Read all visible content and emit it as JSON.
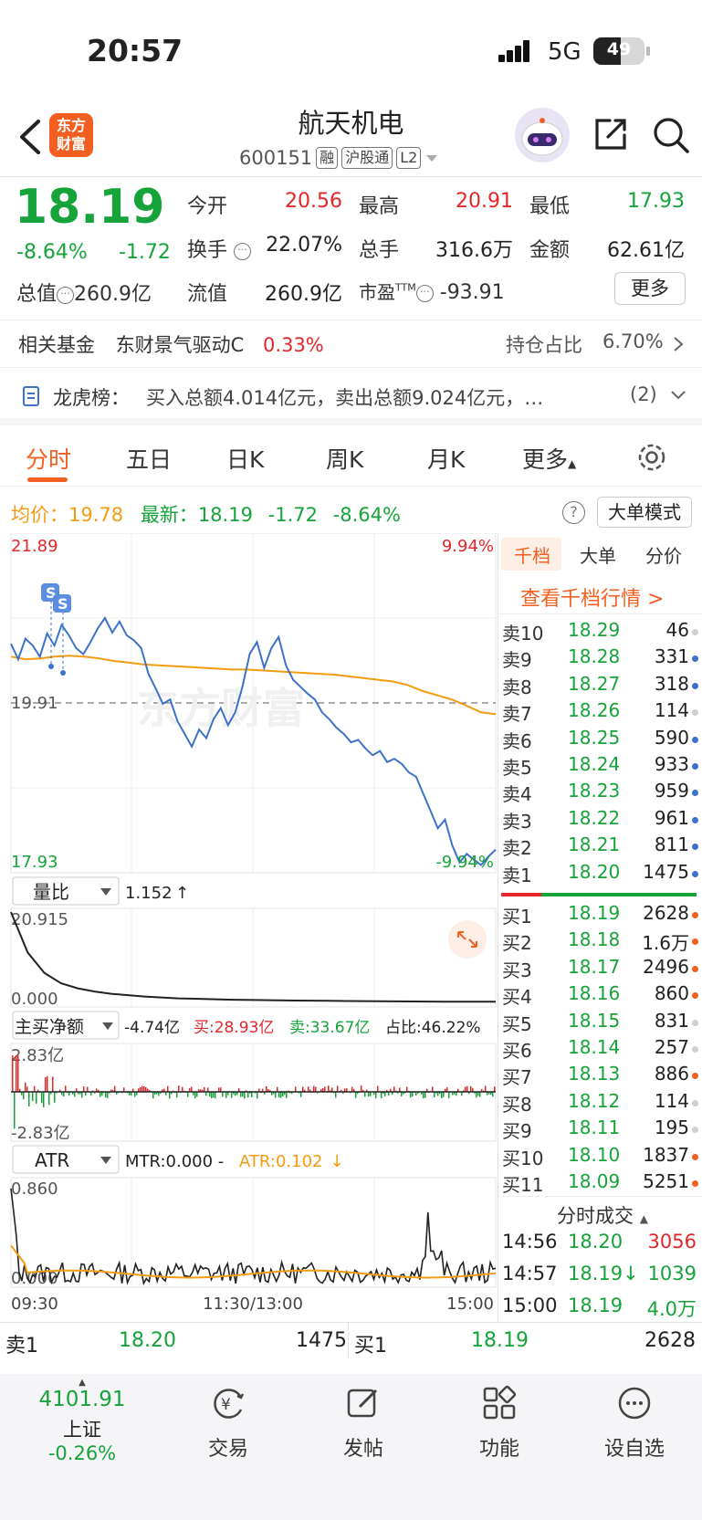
{
  "status_bar": {
    "time": "20:57",
    "network": "5G",
    "battery": "49"
  },
  "header": {
    "logo_text_top": "东方",
    "logo_text_bottom": "财富",
    "stock_name": "航天机电",
    "stock_code": "600151",
    "tags": [
      "融",
      "沪股通",
      "L2"
    ]
  },
  "quote": {
    "price": "18.19",
    "change_pct": "-8.64%",
    "change_val": "-1.72",
    "rows": [
      [
        {
          "label": "今开",
          "value": "20.56",
          "color": "red"
        },
        {
          "label": "最高",
          "value": "20.91",
          "color": "red"
        },
        {
          "label": "最低",
          "value": "17.93",
          "color": "green"
        }
      ],
      [
        {
          "label": "换手",
          "value": "22.07%",
          "color": "black",
          "info": true
        },
        {
          "label": "总手",
          "value": "316.6万",
          "color": "black"
        },
        {
          "label": "金额",
          "value": "62.61亿",
          "color": "black"
        }
      ]
    ],
    "total_mv_label": "总值",
    "total_mv": "260.9亿",
    "float_mv_label": "流值",
    "float_mv": "260.9亿",
    "pe_label": "市盈",
    "pe_sup": "TTM",
    "pe": "-93.91",
    "more_label": "更多"
  },
  "fund_row": {
    "label": "相关基金",
    "fund_name": "东财景气驱动C",
    "fund_change": "0.33%",
    "holding_label": "持仓占比",
    "holding_value": "6.70%"
  },
  "dragon_row": {
    "label": "龙虎榜：",
    "text": "买入总额4.014亿元，卖出总额9.024亿元，…",
    "count": "(2)"
  },
  "tabs": [
    "分时",
    "五日",
    "日K",
    "周K",
    "月K",
    "更多"
  ],
  "avg_row": {
    "avg_label": "均价：",
    "avg_value": "19.78",
    "latest_label": "最新：",
    "latest_value": "18.19",
    "latest_change": "-1.72",
    "latest_pct": "-8.64%",
    "help": "?",
    "big_order_mode": "大单模式"
  },
  "chart_data": [
    {
      "type": "line",
      "ylim": [
        17.93,
        21.89
      ],
      "y_tick_labels_left": [
        "21.89",
        "19.91",
        "17.93"
      ],
      "y_tick_labels_right": [
        "9.94%",
        "-9.94%"
      ],
      "x_tick_labels": [
        "09:30",
        "11:30/13:00",
        "15:00"
      ],
      "watermark": "东方财富",
      "markers": [
        "S",
        "S"
      ],
      "series": [
        {
          "values": [
            20.6,
            20.42,
            20.66,
            20.58,
            20.45,
            20.72,
            20.58,
            20.82,
            20.7,
            20.55,
            20.48,
            20.62,
            20.78,
            20.9,
            20.73,
            20.86,
            20.7,
            20.64,
            20.55,
            20.25,
            20.08,
            19.9,
            19.95,
            19.7,
            19.55,
            19.4,
            19.6,
            19.5,
            19.72,
            19.85,
            19.65,
            19.8,
            20.1,
            20.48,
            20.62,
            20.32,
            20.55,
            20.68,
            20.35,
            20.18,
            20.1,
            20.02,
            19.95,
            19.8,
            19.72,
            19.62,
            19.55,
            19.45,
            19.48,
            19.38,
            19.3,
            19.35,
            19.22,
            19.26,
            19.2,
            19.1,
            19.05,
            18.85,
            18.65,
            18.45,
            18.55,
            18.25,
            18.05,
            18.15,
            18.08,
            18.02,
            18.12,
            18.2
          ]
        },
        {
          "values": [
            20.45,
            20.42,
            20.43,
            20.45,
            20.46,
            20.45,
            20.43,
            20.4,
            20.38,
            20.36,
            20.35,
            20.34,
            20.33,
            20.32,
            20.31,
            20.3,
            20.3,
            20.29,
            20.28,
            20.27,
            20.26,
            20.25,
            20.24,
            20.22,
            20.2,
            20.18,
            20.16,
            20.12,
            20.05,
            20.0,
            19.95,
            19.88,
            19.8,
            19.78
          ]
        }
      ]
    },
    {
      "type": "line",
      "title": "量比",
      "current": "1.152",
      "trend": "↑",
      "ylim": [
        0.0,
        20.915
      ],
      "y_tick_labels": [
        "20.915",
        "0.000"
      ],
      "values": [
        20.9,
        12.0,
        7.5,
        5.2,
        4.1,
        3.4,
        2.9,
        2.6,
        2.3,
        2.1,
        1.9,
        1.8,
        1.7,
        1.6,
        1.55,
        1.5,
        1.45,
        1.4,
        1.38,
        1.35,
        1.3,
        1.28,
        1.25,
        1.23,
        1.2,
        1.18,
        1.17,
        1.16,
        1.15,
        1.152
      ]
    },
    {
      "type": "bar",
      "title": "主买净额",
      "net": "-4.74亿",
      "buy_label": "买:",
      "buy": "28.93亿",
      "sell_label": "卖:",
      "sell": "33.67亿",
      "ratio_label": "占比:",
      "ratio": "46.22%",
      "ylim": [
        -2.83,
        2.83
      ],
      "y_tick_labels": [
        "2.83亿",
        "-2.83亿"
      ]
    },
    {
      "type": "line",
      "title": "ATR",
      "mtr_label": "MTR:",
      "mtr": "0.000",
      "atr_label": "ATR:",
      "atr": "0.102",
      "trend": "↓",
      "ylim": [
        0.0,
        0.86
      ],
      "y_tick_labels": [
        "0.860",
        "0.000"
      ]
    }
  ],
  "order_book": {
    "tabs": [
      "千档",
      "大单",
      "分价"
    ],
    "link": "查看千档行情 >",
    "asks": [
      {
        "label": "卖10",
        "price": "18.29",
        "vol": "46",
        "dot": "#cfcfcf"
      },
      {
        "label": "卖9",
        "price": "18.28",
        "vol": "331",
        "dot": "#3d72c9"
      },
      {
        "label": "卖8",
        "price": "18.27",
        "vol": "318",
        "dot": "#3d72c9"
      },
      {
        "label": "卖7",
        "price": "18.26",
        "vol": "114",
        "dot": "#cfcfcf"
      },
      {
        "label": "卖6",
        "price": "18.25",
        "vol": "590",
        "dot": "#3d72c9"
      },
      {
        "label": "卖5",
        "price": "18.24",
        "vol": "933",
        "dot": "#3d72c9"
      },
      {
        "label": "卖4",
        "price": "18.23",
        "vol": "959",
        "dot": "#3d72c9"
      },
      {
        "label": "卖3",
        "price": "18.22",
        "vol": "961",
        "dot": "#3d72c9"
      },
      {
        "label": "卖2",
        "price": "18.21",
        "vol": "811",
        "dot": "#3d72c9"
      },
      {
        "label": "卖1",
        "price": "18.20",
        "vol": "1475",
        "dot": "#3d72c9"
      }
    ],
    "bids": [
      {
        "label": "买1",
        "price": "18.19",
        "vol": "2628",
        "dot": "#f35f21"
      },
      {
        "label": "买2",
        "price": "18.18",
        "vol": "1.6万",
        "dot": "#f35f21"
      },
      {
        "label": "买3",
        "price": "18.17",
        "vol": "2496",
        "dot": "#f35f21"
      },
      {
        "label": "买4",
        "price": "18.16",
        "vol": "860",
        "dot": "#f35f21"
      },
      {
        "label": "买5",
        "price": "18.15",
        "vol": "831",
        "dot": "#cfcfcf"
      },
      {
        "label": "买6",
        "price": "18.14",
        "vol": "257",
        "dot": "#cfcfcf"
      },
      {
        "label": "买7",
        "price": "18.13",
        "vol": "886",
        "dot": "#f35f21"
      },
      {
        "label": "买8",
        "price": "18.12",
        "vol": "114",
        "dot": "#cfcfcf"
      },
      {
        "label": "买9",
        "price": "18.11",
        "vol": "195",
        "dot": "#cfcfcf"
      },
      {
        "label": "买10",
        "price": "18.10",
        "vol": "1837",
        "dot": "#f35f21"
      },
      {
        "label": "买11",
        "price": "18.09",
        "vol": "5251",
        "dot": "#f35f21"
      }
    ],
    "ticks_title": "分时成交",
    "ticks": [
      {
        "time": "14:56",
        "price": "18.20",
        "vol": "3056",
        "vol_color": "red"
      },
      {
        "time": "14:57",
        "price": "18.19↓",
        "vol": "1039",
        "vol_color": "green"
      },
      {
        "time": "15:00",
        "price": "18.19",
        "vol": "4.0万",
        "vol_color": "green"
      }
    ]
  },
  "bottom_quote": {
    "sell_label": "卖1",
    "sell_price": "18.20",
    "sell_vol": "1475",
    "buy_label": "买1",
    "buy_price": "18.19",
    "buy_vol": "2628"
  },
  "bottom_nav": {
    "index_value": "4101.91",
    "index_name": "上证",
    "index_change": "-0.26%",
    "items": [
      "交易",
      "发帖",
      "功能",
      "设自选"
    ]
  },
  "colors": {
    "brand": "#f35f21",
    "up": "#e4262b",
    "down": "#16a33a",
    "line": "#3d72c9",
    "avg": "#f39c12"
  }
}
